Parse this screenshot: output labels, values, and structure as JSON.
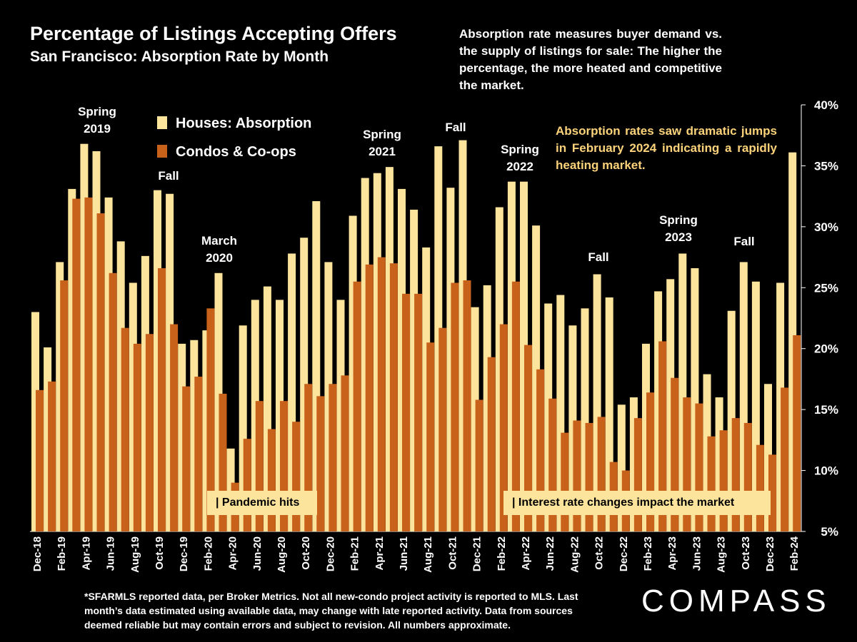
{
  "chart_data": {
    "type": "bar",
    "title": "Percentage of Listings Accepting Offers",
    "subtitle": "San Francisco:  Absorption Rate by Month",
    "description": "Absorption rate measures buyer demand vs. the supply of listings for sale: The higher the percentage, the more heated and competitive the market.",
    "callout": "Absorption rates saw dramatic jumps in February 2024 indicating a rapidly heating market.",
    "categories": [
      "Dec-18",
      null,
      "Feb-19",
      null,
      "Apr-19",
      null,
      "Jun-19",
      null,
      "Aug-19",
      null,
      "Oct-19",
      null,
      "Dec-19",
      null,
      "Feb-20",
      null,
      "Apr-20",
      null,
      "Jun-20",
      null,
      "Aug-20",
      null,
      "Oct-20",
      null,
      "Dec-20",
      null,
      "Feb-21",
      null,
      "Apr-21",
      null,
      "Jun-21",
      null,
      "Aug-21",
      null,
      "Oct-21",
      null,
      "Dec-21",
      null,
      "Feb-22",
      null,
      "Apr-22",
      null,
      "Jun-22",
      null,
      "Aug-22",
      null,
      "Oct-22",
      null,
      "Dec-22",
      null,
      "Feb-23",
      null,
      "Apr-23",
      null,
      "Jun-23",
      null,
      "Aug-23",
      null,
      "Oct-23",
      null,
      "Dec-23",
      null,
      "Feb-24"
    ],
    "series": [
      {
        "name": "Houses: Absorption",
        "color": "#fde49c",
        "values": [
          23.0,
          20.1,
          27.1,
          33.1,
          36.8,
          36.2,
          32.4,
          28.8,
          25.4,
          27.6,
          33.0,
          32.7,
          20.4,
          20.7,
          21.5,
          26.2,
          11.8,
          21.9,
          24.0,
          25.1,
          24.0,
          27.8,
          29.1,
          32.1,
          27.1,
          24.0,
          30.9,
          34.0,
          34.4,
          34.9,
          33.1,
          31.4,
          28.3,
          36.6,
          33.2,
          37.1,
          23.4,
          25.2,
          31.6,
          33.7,
          33.7,
          30.1,
          23.7,
          24.4,
          21.9,
          23.3,
          26.1,
          24.2,
          15.4,
          16.0,
          20.4,
          24.7,
          25.7,
          27.8,
          26.6,
          17.9,
          16.0,
          23.1,
          27.1,
          25.5,
          17.1,
          25.4,
          36.1
        ]
      },
      {
        "name": "Condos & Co-ops",
        "color": "#c8621b",
        "values": [
          16.6,
          17.3,
          25.6,
          32.3,
          32.4,
          31.1,
          26.2,
          21.7,
          20.4,
          21.2,
          26.6,
          22.0,
          16.9,
          17.7,
          23.3,
          16.3,
          9.0,
          12.6,
          15.7,
          13.4,
          15.7,
          14.0,
          17.1,
          16.1,
          17.1,
          17.8,
          25.5,
          26.9,
          27.5,
          27.0,
          24.5,
          24.5,
          20.5,
          21.7,
          25.4,
          25.6,
          15.8,
          19.3,
          22.0,
          25.5,
          20.3,
          18.3,
          15.9,
          13.1,
          14.1,
          13.9,
          14.4,
          10.7,
          10.0,
          14.3,
          16.4,
          20.6,
          17.6,
          16.0,
          15.5,
          12.8,
          13.3,
          14.3,
          13.9,
          12.1,
          11.3,
          16.8,
          21.1
        ]
      }
    ],
    "ylim": [
      5,
      40
    ],
    "yticks": [
      {
        "value": 5,
        "label": "5%"
      },
      {
        "value": 10,
        "label": "10%"
      },
      {
        "value": 15,
        "label": "15%"
      },
      {
        "value": 20,
        "label": "20%"
      },
      {
        "value": 25,
        "label": "25%"
      },
      {
        "value": 30,
        "label": "30%"
      },
      {
        "value": 35,
        "label": "35%"
      },
      {
        "value": 40,
        "label": "40%"
      }
    ],
    "annotations": [
      "Spring\n2019",
      "Fall",
      "March\n2020",
      "Spring\n2021",
      "Fall",
      "Spring\n2022",
      "Fall",
      "Spring\n2023",
      "Fall"
    ],
    "event_labels": [
      "| Pandemic hits",
      "| Interest rate changes impact the market"
    ],
    "footnote": "*SFARMLS reported data, per Broker Metrics. Not all new-condo project activity is reported to MLS. Last month’s data estimated using available data, may change with late reported activity. Data from sources deemed reliable but may contain errors and subject to revision. All numbers approximate.",
    "brand": "COMPASS"
  }
}
